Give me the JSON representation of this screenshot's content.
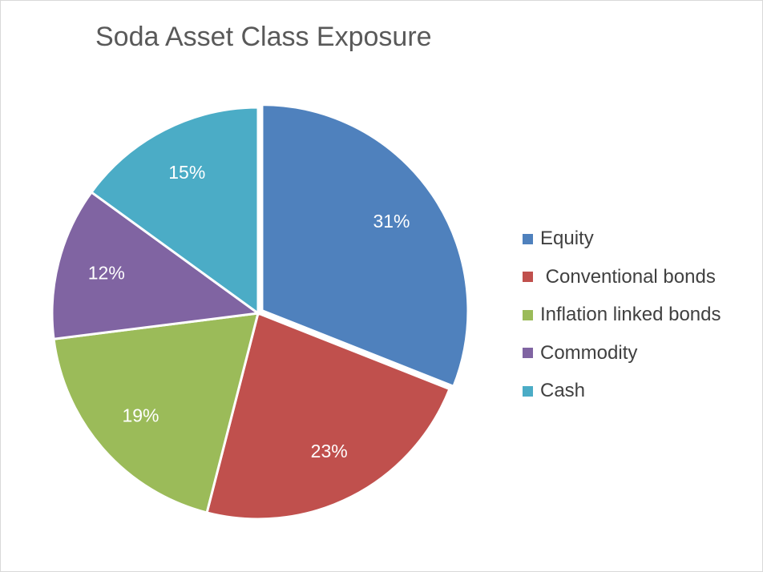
{
  "chart_data": {
    "type": "pie",
    "title": "Soda Asset Class Exposure",
    "categories": [
      "Equity",
      " Conventional bonds",
      "Inflation linked bonds",
      "Commodity",
      "Cash"
    ],
    "values": [
      31,
      23,
      19,
      12,
      15
    ],
    "data_labels": [
      "31%",
      "23%",
      "19%",
      "12%",
      "15%"
    ],
    "colors": [
      "#4f81bd",
      "#c0504d",
      "#9bbb59",
      "#8064a2",
      "#4bacc6"
    ],
    "exploded_slice": "Equity",
    "legend_position": "right"
  }
}
